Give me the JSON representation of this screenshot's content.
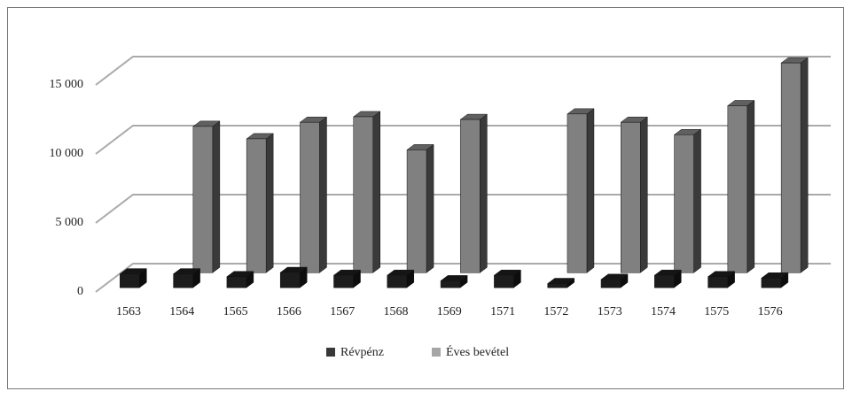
{
  "chart_data": {
    "type": "bar3d",
    "categories": [
      "1563",
      "1564",
      "1565",
      "1566",
      "1567",
      "1568",
      "1569",
      "1571",
      "1572",
      "1573",
      "1574",
      "1575",
      "1576"
    ],
    "series": [
      {
        "name": "Révpénz",
        "color": "#1c1c1c",
        "values": [
          1000,
          1000,
          800,
          1100,
          900,
          900,
          500,
          900,
          300,
          600,
          900,
          800,
          700
        ]
      },
      {
        "name": "Éves bevétel",
        "color": "#808080",
        "values": [
          null,
          10600,
          9700,
          10900,
          11300,
          8900,
          11100,
          null,
          11500,
          10900,
          10000,
          12100,
          15200
        ]
      }
    ],
    "ylim": [
      0,
      15000
    ],
    "yticks": [
      0,
      {
        "value": 5000,
        "label": "5 000"
      },
      {
        "value": 10000,
        "label": "10 000"
      },
      {
        "value": 15000,
        "label": "15 000"
      }
    ],
    "grid": true,
    "legend": "bottom"
  }
}
